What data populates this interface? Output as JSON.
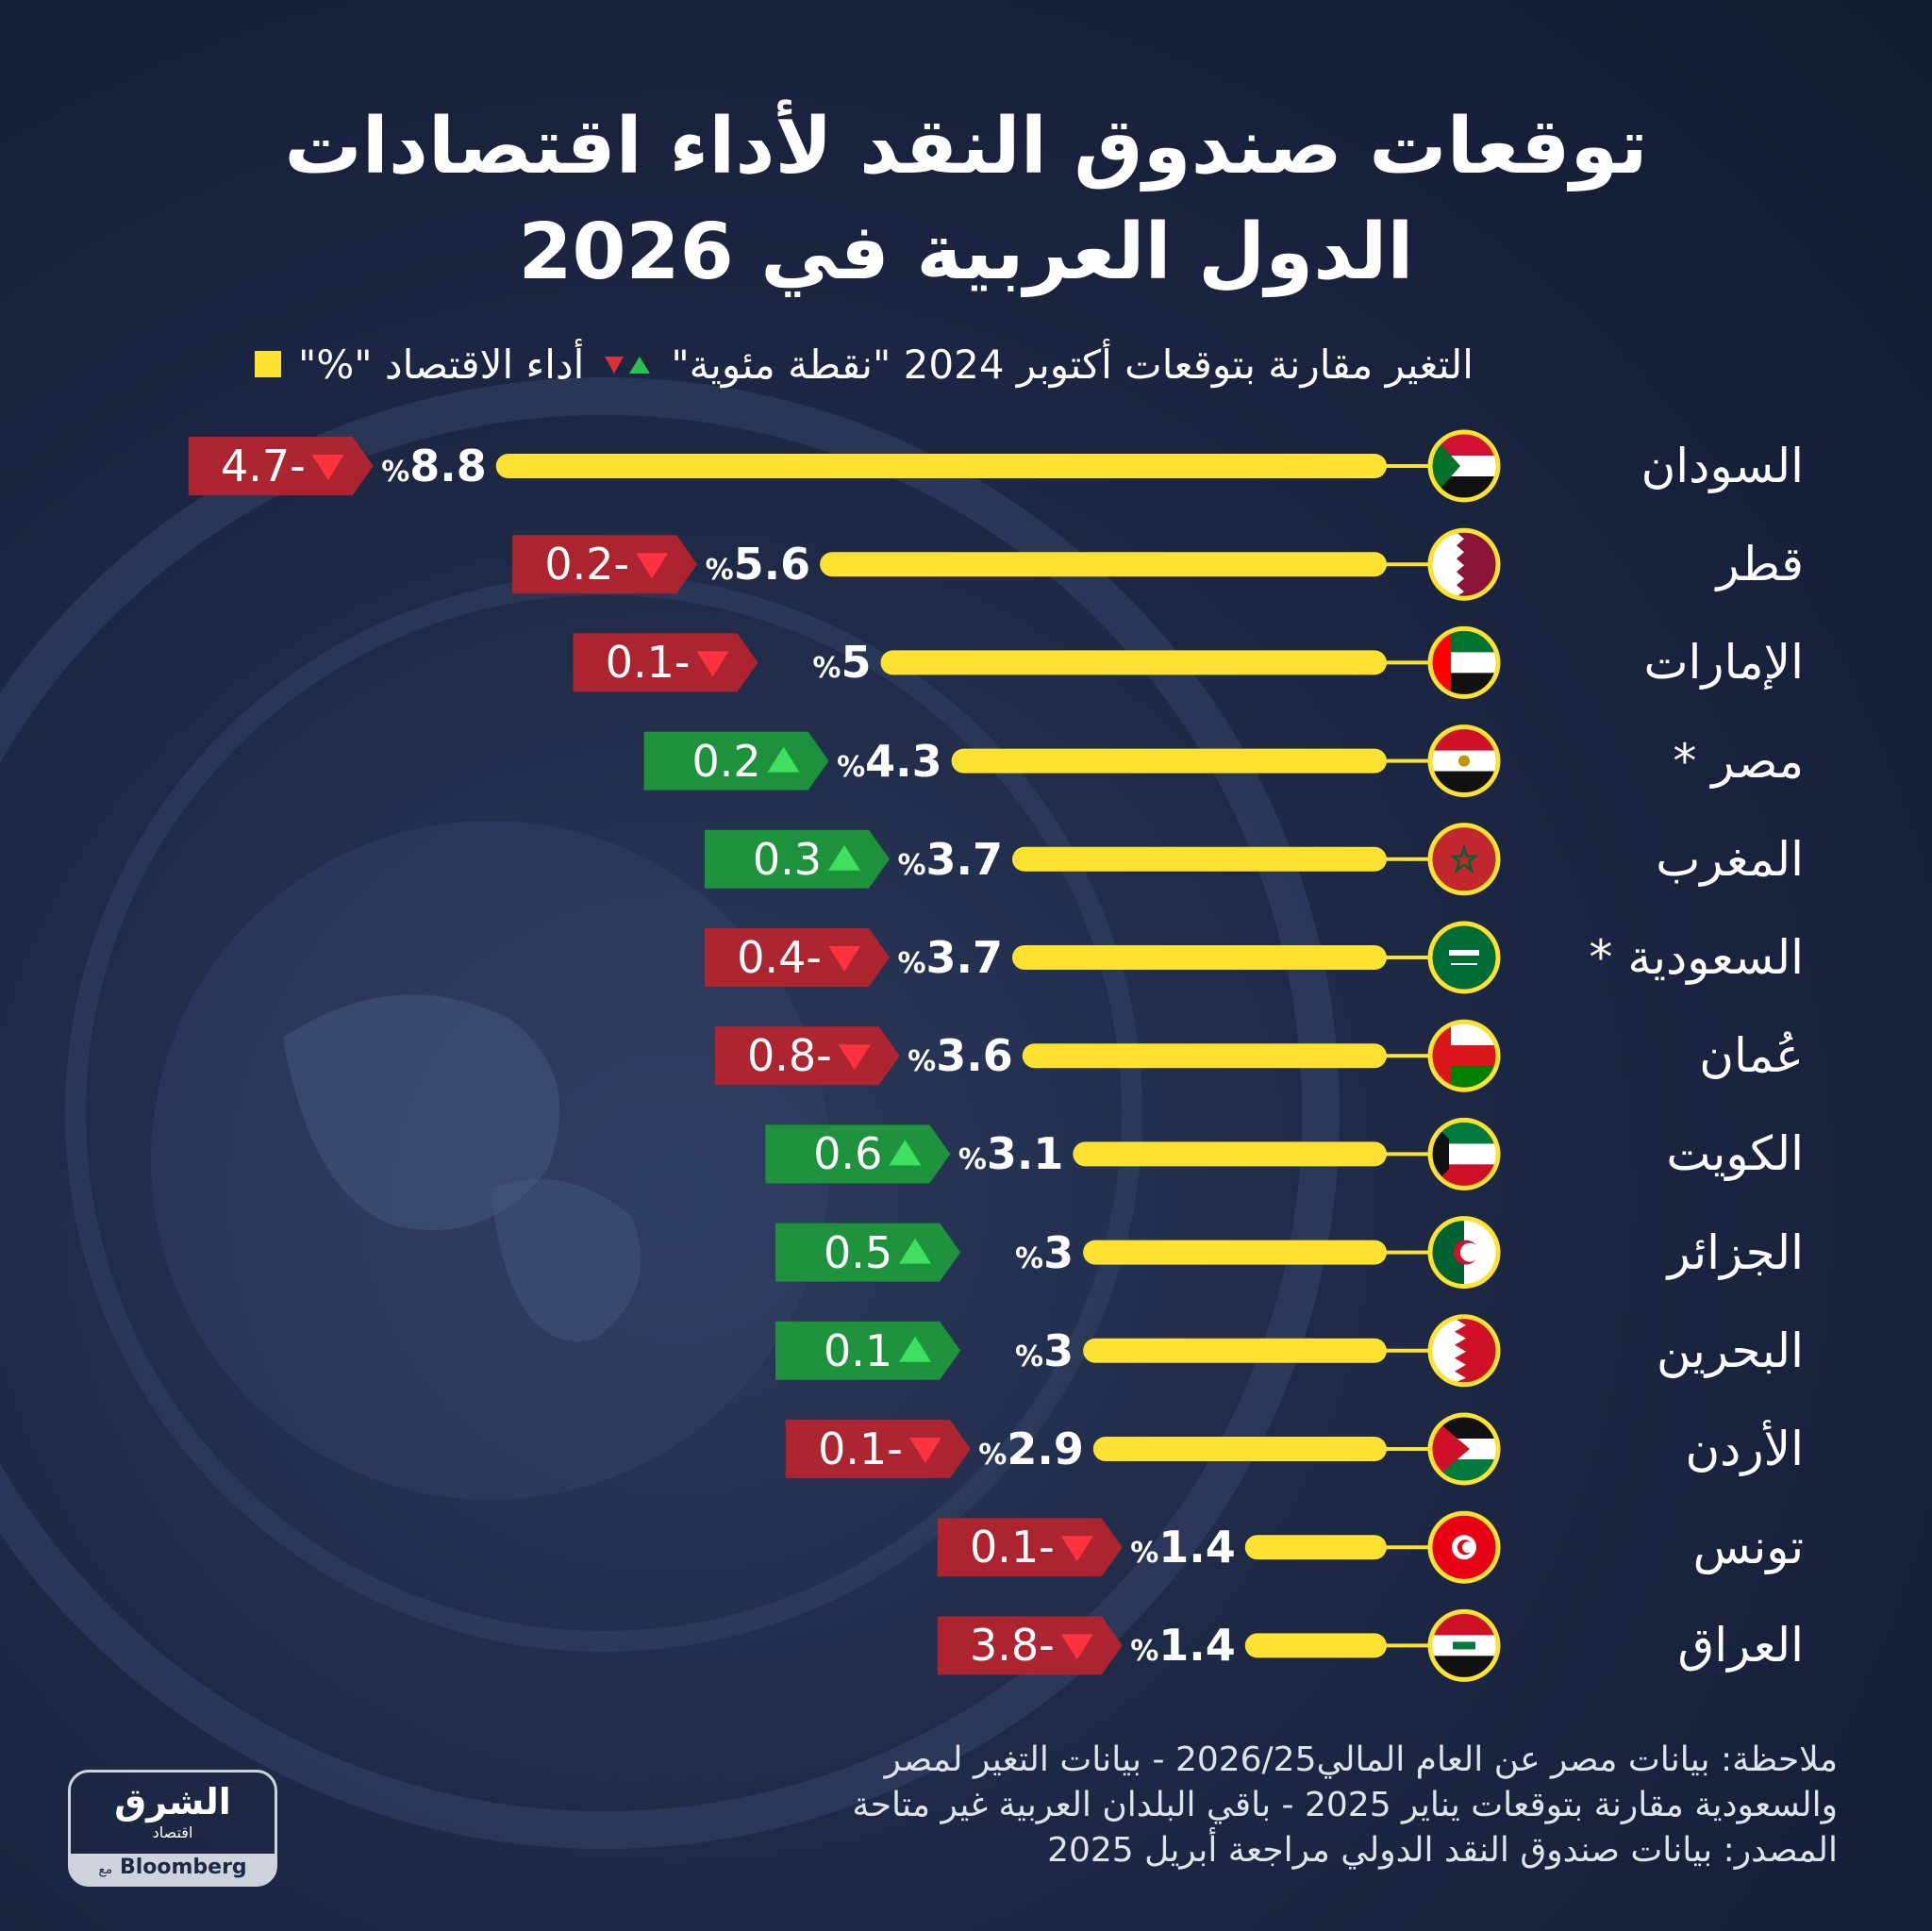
{
  "title_line1": "توقعات صندوق النقد لأداء اقتصادات",
  "title_line2": "الدول العربية في 2026",
  "legend": {
    "performance": "أداء الاقتصاد \"%\"",
    "change": "التغير مقارنة بتوقعات أكتوبر 2024 \"نقطة مئوية\""
  },
  "colors": {
    "bar": "#fde231",
    "up": "#1e9a3c",
    "down": "#b8242e",
    "background": "#1b2440"
  },
  "chart_data": {
    "type": "bar",
    "title": "توقعات صندوق النقد لأداء اقتصادات الدول العربية في 2026",
    "unit": "%",
    "categories": [
      "السودان",
      "قطر",
      "الإمارات",
      "مصر *",
      "المغرب",
      "السعودية *",
      "عُمان",
      "الكويت",
      "الجزائر",
      "البحرين",
      "الأردن",
      "تونس",
      "العراق"
    ],
    "flags": [
      "sudan",
      "qatar",
      "uae",
      "egypt",
      "morocco",
      "saudi",
      "oman",
      "kuwait",
      "algeria",
      "bahrain",
      "jordan",
      "tunisia",
      "iraq"
    ],
    "series": [
      {
        "name": "أداء الاقتصاد \"%\"",
        "values": [
          8.8,
          5.6,
          5,
          4.3,
          3.7,
          3.7,
          3.6,
          3.1,
          3,
          3,
          2.9,
          1.4,
          1.4
        ]
      },
      {
        "name": "التغير مقارنة بتوقعات أكتوبر 2024 \"نقطة مئوية\"",
        "values": [
          -4.7,
          -0.2,
          -0.1,
          0.2,
          0.3,
          -0.4,
          -0.8,
          0.6,
          0.5,
          0.1,
          -0.1,
          -0.1,
          -3.8
        ]
      }
    ],
    "value_labels": [
      "8.8",
      "5.6",
      "5",
      "4.3",
      "3.7",
      "3.7",
      "3.6",
      "3.1",
      "3",
      "3",
      "2.9",
      "1.4",
      "1.4"
    ],
    "change_labels": [
      "4.7-",
      "0.2-",
      "0.1-",
      "0.2",
      "0.3",
      "0.4-",
      "0.8-",
      "0.6",
      "0.5",
      "0.1",
      "0.1-",
      "0.1-",
      "3.8-"
    ],
    "pct_symbol": "%"
  },
  "notes": {
    "line1": "ملاحظة: بيانات مصر عن العام المالي2026/25 - بيانات التغير لمصر",
    "line2": "والسعودية مقارنة بتوقعات يناير 2025 - باقي البلدان العربية غير متاحة",
    "line3": "المصدر: بيانات صندوق النقد الدولي مراجعة أبريل 2025"
  },
  "logo": {
    "arabic": "الشرق",
    "sub": "اقتصاد",
    "with": "مع",
    "brand": "Bloomberg"
  }
}
